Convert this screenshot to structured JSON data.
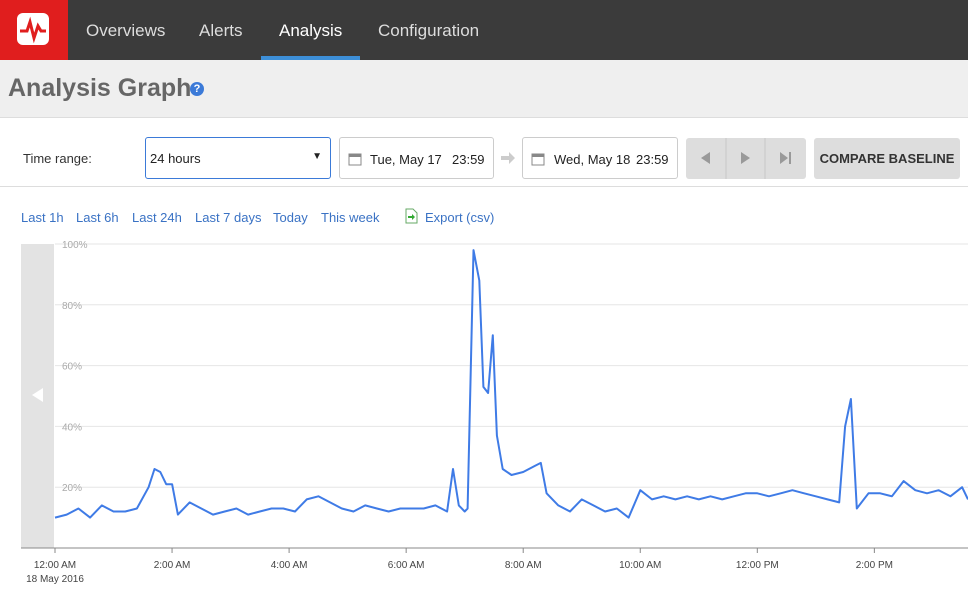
{
  "nav": {
    "items": [
      "Overviews",
      "Alerts",
      "Analysis",
      "Configuration"
    ],
    "active_index": 2
  },
  "header": {
    "title": "Analysis Graph",
    "help": "?"
  },
  "controls": {
    "time_range_label": "Time range:",
    "time_range_value": "24 hours",
    "start_date": "Tue, May 17",
    "start_time": "23:59",
    "end_date": "Wed, May 18",
    "end_time": "23:59",
    "compare": "COMPARE BASELINE"
  },
  "quick_links": [
    "Last 1h",
    "Last 6h",
    "Last 24h",
    "Last 7 days",
    "Today",
    "This week"
  ],
  "export": "Export (csv)",
  "chart_data": {
    "type": "line",
    "x": [
      0,
      0.2,
      0.4,
      0.6,
      0.8,
      1.0,
      1.2,
      1.4,
      1.6,
      1.7,
      1.8,
      1.9,
      2.0,
      2.1,
      2.3,
      2.5,
      2.7,
      2.9,
      3.1,
      3.3,
      3.5,
      3.7,
      3.9,
      4.1,
      4.3,
      4.5,
      4.7,
      4.9,
      5.1,
      5.3,
      5.5,
      5.7,
      5.9,
      6.1,
      6.3,
      6.5,
      6.7,
      6.8,
      6.9,
      7.0,
      7.05,
      7.15,
      7.25,
      7.32,
      7.4,
      7.48,
      7.55,
      7.65,
      7.8,
      8.0,
      8.2,
      8.3,
      8.4,
      8.6,
      8.8,
      9.0,
      9.2,
      9.4,
      9.6,
      9.8,
      10.0,
      10.2,
      10.4,
      10.6,
      10.8,
      11.0,
      11.2,
      11.4,
      11.6,
      11.8,
      12.0,
      12.2,
      12.4,
      12.6,
      12.8,
      13.0,
      13.2,
      13.4,
      13.5,
      13.6,
      13.7,
      13.9,
      14.1,
      14.3,
      14.5,
      14.7,
      14.9,
      15.1,
      15.3,
      15.5,
      15.6
    ],
    "series": [
      {
        "color": "#3f7be6",
        "values": [
          10,
          11,
          13,
          10,
          14,
          12,
          12,
          13,
          20,
          26,
          25,
          21,
          21,
          11,
          15,
          13,
          11,
          12,
          13,
          11,
          12,
          13,
          13,
          12,
          16,
          17,
          15,
          13,
          12,
          14,
          13,
          12,
          13,
          13,
          13,
          14,
          12,
          26,
          14,
          12,
          13,
          98,
          88,
          53,
          51,
          70,
          37,
          26,
          24,
          25,
          27,
          28,
          18,
          14,
          12,
          16,
          14,
          12,
          13,
          10,
          19,
          16,
          17,
          16,
          17,
          16,
          17,
          16,
          17,
          18,
          18,
          17,
          18,
          19,
          18,
          17,
          16,
          15,
          40,
          49,
          13,
          18,
          18,
          17,
          22,
          19,
          18,
          19,
          17,
          20,
          16
        ]
      }
    ],
    "xlim": [
      0,
      15.6
    ],
    "xticks": [
      {
        "value": 0,
        "label": "12:00 AM"
      },
      {
        "value": 2,
        "label": "2:00 AM"
      },
      {
        "value": 4,
        "label": "4:00 AM"
      },
      {
        "value": 6,
        "label": "6:00 AM"
      },
      {
        "value": 8,
        "label": "8:00 AM"
      },
      {
        "value": 10,
        "label": "10:00 AM"
      },
      {
        "value": 12,
        "label": "12:00 PM"
      },
      {
        "value": 14,
        "label": "2:00 PM"
      }
    ],
    "x_date_label": "18 May 2016",
    "ylim": [
      0,
      100
    ],
    "yticks": [
      {
        "value": 20,
        "label": "20%"
      },
      {
        "value": 40,
        "label": "40%"
      },
      {
        "value": 60,
        "label": "60%"
      },
      {
        "value": 80,
        "label": "80%"
      },
      {
        "value": 100,
        "label": "100%"
      }
    ],
    "grid": true
  }
}
